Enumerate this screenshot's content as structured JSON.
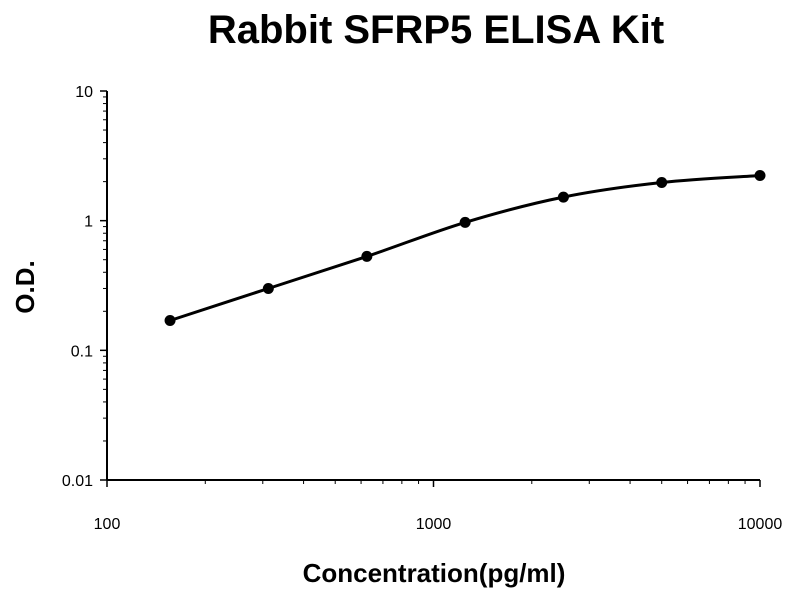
{
  "chart_data": {
    "type": "scatter",
    "title": "Rabbit SFRP5 ELISA Kit",
    "xlabel": "Concentration(pg/ml)",
    "ylabel": "O.D.",
    "x_scale": "log",
    "y_scale": "log",
    "xlim": [
      100,
      10000
    ],
    "ylim": [
      0.01,
      10
    ],
    "x_ticks": [
      "100",
      "1000",
      "10000"
    ],
    "y_ticks": [
      "0.01",
      "0.1",
      "1",
      "10"
    ],
    "grid": false,
    "legend": "none",
    "series": [
      {
        "x": [
          156,
          312,
          625,
          1250,
          2500,
          5000,
          10000
        ],
        "y": [
          0.17,
          0.3,
          0.53,
          0.97,
          1.52,
          1.97,
          2.23
        ],
        "style": "points with smooth fitted curve",
        "color": "#000000"
      }
    ]
  }
}
